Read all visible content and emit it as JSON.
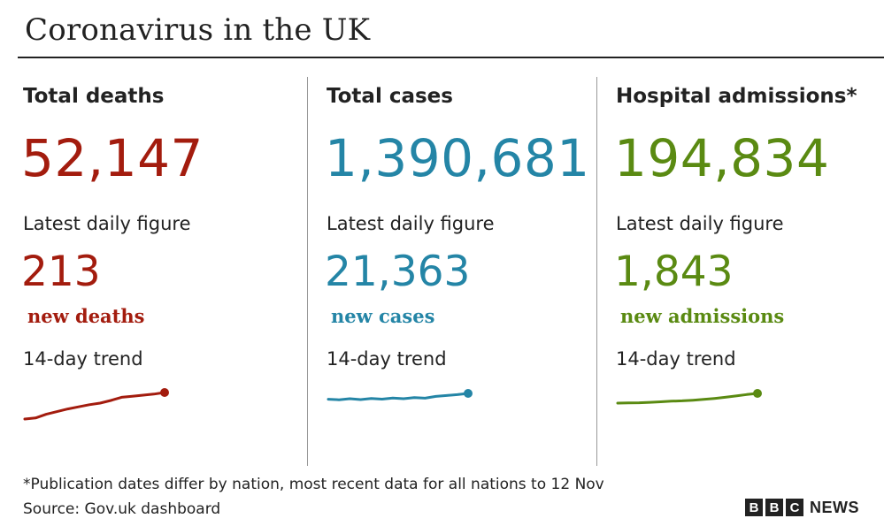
{
  "header": {
    "title": "Coronavirus in the UK"
  },
  "colors": {
    "deaths": "#a31c0e",
    "cases": "#2485a6",
    "admissions": "#5a8a12",
    "text": "#222222",
    "divider": "#999999"
  },
  "chart_data": [
    {
      "type": "line",
      "label": "Total deaths",
      "total": "52,147",
      "daily_label": "Latest daily figure",
      "daily_value": "213",
      "daily_unit": "new deaths",
      "trend_label": "14-day trend",
      "values": [
        0.0,
        0.04,
        0.18,
        0.28,
        0.38,
        0.46,
        0.54,
        0.6,
        0.7,
        0.82,
        0.86,
        0.9,
        0.94,
        1.0
      ]
    },
    {
      "type": "line",
      "label": "Total cases",
      "total": "1,390,681",
      "daily_label": "Latest daily figure",
      "daily_value": "21,363",
      "daily_unit": "new cases",
      "trend_label": "14-day trend",
      "values": [
        0.45,
        0.4,
        0.5,
        0.42,
        0.52,
        0.46,
        0.56,
        0.5,
        0.6,
        0.55,
        0.72,
        0.8,
        0.88,
        1.0
      ]
    },
    {
      "type": "line",
      "label": "Hospital admissions*",
      "total": "194,834",
      "daily_label": "Latest daily figure",
      "daily_value": "1,843",
      "daily_unit": "new admissions",
      "trend_label": "14-day trend",
      "values": [
        0.0,
        0.02,
        0.04,
        0.08,
        0.14,
        0.2,
        0.24,
        0.3,
        0.38,
        0.48,
        0.6,
        0.74,
        0.88,
        1.0
      ]
    }
  ],
  "footer": {
    "footnote": "*Publication dates differ by nation, most recent data for all nations to 12 Nov",
    "source": "Source: Gov.uk dashboard",
    "logo": {
      "letters": [
        "B",
        "B",
        "C"
      ],
      "word": "NEWS"
    }
  }
}
